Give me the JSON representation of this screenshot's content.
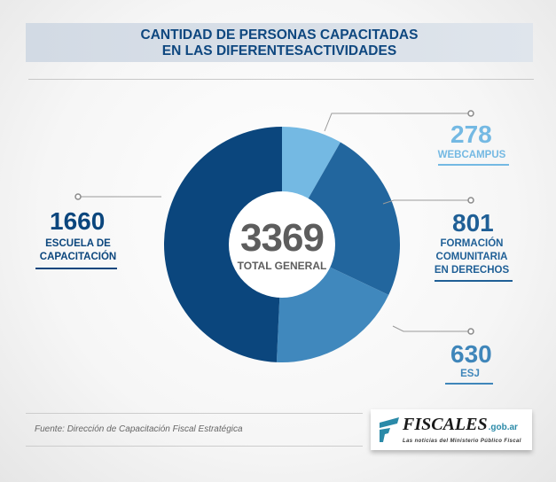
{
  "title": {
    "line1": "CANTIDAD DE PERSONAS CAPACITADAS",
    "line2": "EN LAS DIFERENTESACTIVIDADES"
  },
  "chart_data": {
    "type": "pie",
    "variant": "donut",
    "title": "CANTIDAD DE PERSONAS CAPACITADAS EN LAS DIFERENTESACTIVIDADES",
    "total": {
      "value": "3369",
      "label": "TOTAL GENERAL"
    },
    "slices": [
      {
        "name": "WEBCAMPUS",
        "value": 278,
        "color": "#74b9e3"
      },
      {
        "name": "FORMACIÓN COMUNITARIA EN DERECHOS",
        "value": 801,
        "color": "#22669e"
      },
      {
        "name": "ESJ",
        "value": 630,
        "color": "#4088bd"
      },
      {
        "name": "ESCUELA DE CAPACITACIÓN",
        "value": 1660,
        "color": "#0b467d"
      }
    ]
  },
  "labels": {
    "webcampus": {
      "value": "278",
      "l1": "WEBCAMPUS"
    },
    "formacion": {
      "value": "801",
      "l1": "FORMACIÓN",
      "l2": "COMUNITARIA",
      "l3": "EN DERECHOS"
    },
    "esj": {
      "value": "630",
      "l1": "ESJ"
    },
    "escuela": {
      "value": "1660",
      "l1": "ESCUELA DE",
      "l2": "CAPACITACIÓN"
    }
  },
  "source": "Fuente: Dirección de Capacitación Fiscal Estratégica",
  "logo": {
    "brand": "FISCALES",
    "domain": ".gob.ar",
    "tagline": "Las noticias del Ministerio Público Fiscal"
  }
}
